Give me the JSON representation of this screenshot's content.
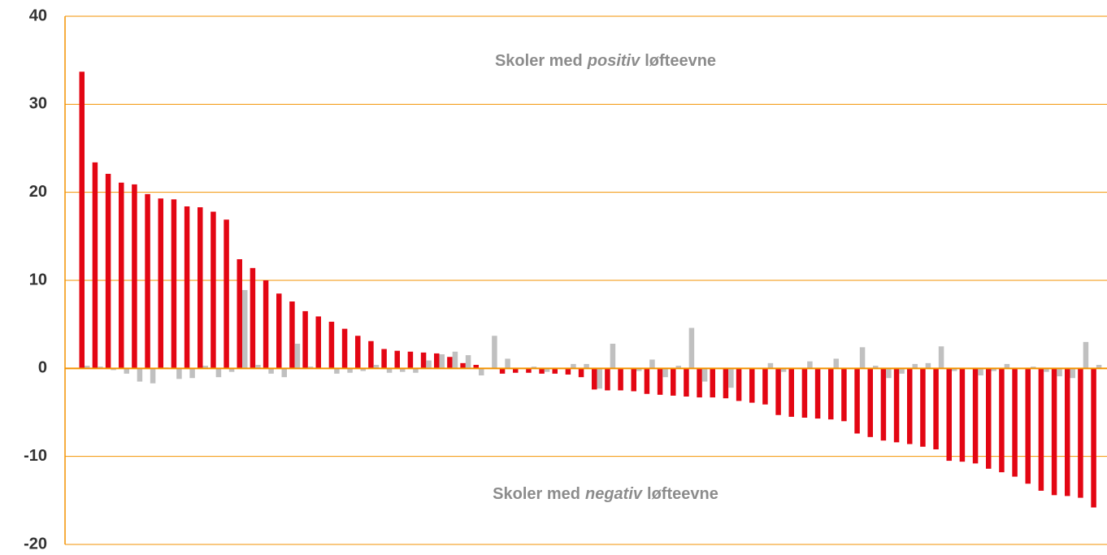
{
  "chart_data": {
    "type": "bar",
    "categories": [
      null,
      null,
      null,
      null,
      null,
      null,
      null,
      null,
      null,
      null,
      null,
      null,
      null,
      null,
      null,
      null,
      null,
      null,
      null,
      null,
      null,
      null,
      null,
      null,
      null,
      null,
      null,
      null,
      null,
      null,
      null,
      null,
      null,
      null,
      null,
      null,
      null,
      null,
      null,
      null,
      null,
      null,
      null,
      null,
      null,
      null,
      null,
      null,
      null,
      null,
      null,
      null,
      null,
      null,
      null,
      null,
      null,
      null,
      null,
      null,
      null,
      null,
      null,
      null,
      null,
      null,
      null,
      null,
      null,
      null,
      null,
      null,
      null,
      null,
      null,
      null,
      null,
      null
    ],
    "series": [
      {
        "color": "#e30613",
        "values": [
          33.7,
          23.4,
          22.1,
          21.1,
          20.9,
          19.8,
          19.3,
          19.2,
          18.4,
          18.3,
          17.8,
          16.9,
          12.4,
          11.4,
          10.0,
          8.5,
          7.6,
          6.5,
          5.9,
          5.3,
          4.5,
          3.7,
          3.1,
          2.2,
          2.0,
          1.9,
          1.8,
          1.7,
          1.3,
          0.6,
          0.4,
          0,
          -0.6,
          -0.5,
          -0.5,
          -0.6,
          -0.6,
          -0.7,
          -1.0,
          -2.4,
          -2.5,
          -2.5,
          -2.6,
          -2.9,
          -3.0,
          -3.1,
          -3.2,
          -3.3,
          -3.3,
          -3.4,
          -3.7,
          -3.9,
          -4.1,
          -5.3,
          -5.5,
          -5.6,
          -5.7,
          -5.8,
          -6.0,
          -7.4,
          -7.8,
          -8.2,
          -8.4,
          -8.6,
          -8.9,
          -9.2,
          -10.5,
          -10.6,
          -10.8,
          -11.4,
          -11.8,
          -12.3,
          -13.1,
          -13.9,
          -14.4,
          -14.5,
          -14.7,
          -15.8
        ]
      },
      {
        "color": "#c0c0c0",
        "values": [
          0.3,
          0.2,
          -0.2,
          -0.6,
          -1.5,
          -1.7,
          0.1,
          -1.2,
          -1.1,
          0.3,
          -1.0,
          -0.4,
          8.9,
          0.4,
          -0.6,
          -1.0,
          2.8,
          0.2,
          0,
          -0.6,
          -0.5,
          -0.3,
          0.4,
          -0.5,
          -0.4,
          -0.5,
          0.9,
          1.6,
          1.9,
          1.5,
          -0.8,
          3.7,
          1.1,
          0,
          0.2,
          -0.4,
          0,
          0.5,
          0.5,
          -2.3,
          2.8,
          0,
          -0.3,
          1.0,
          -1.0,
          0.3,
          4.6,
          -1.5,
          0,
          -2.2,
          0,
          0,
          0.6,
          -0.4,
          0,
          0.8,
          0,
          1.1,
          0,
          2.4,
          0.3,
          -1.1,
          -0.6,
          0.5,
          0.6,
          2.5,
          -0.3,
          0,
          -0.8,
          -0.3,
          0.5,
          0,
          0.2,
          -0.4,
          -0.9,
          -1.1,
          3.0,
          0.4
        ]
      }
    ],
    "ylim": [
      -20,
      40
    ],
    "yticks": [
      -20,
      -10,
      0,
      10,
      20,
      30,
      40
    ],
    "grid": true,
    "grid_color": "#f39200",
    "annotations": [
      {
        "text": [
          "Skoler med",
          "positiv",
          "løfteevne"
        ]
      },
      {
        "text": [
          "Skoler med",
          "negativ",
          "løfteevne"
        ]
      }
    ]
  }
}
